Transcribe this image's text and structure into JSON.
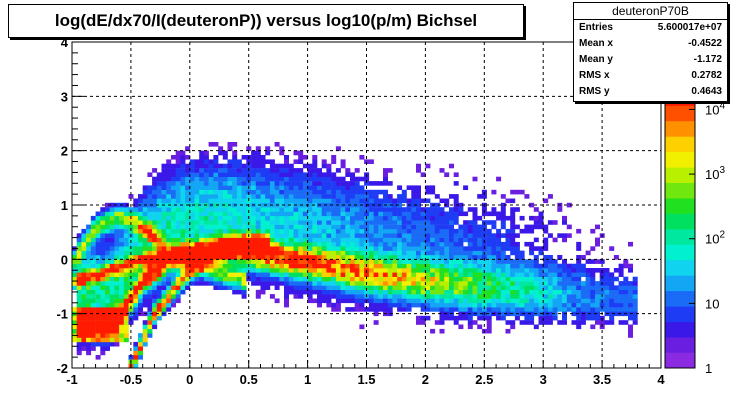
{
  "chart_data": {
    "type": "heatmap",
    "title": "log(dE/dx70/I(deuteronP)) versus log10(p/m) Bichsel",
    "xlim": [
      -1,
      4
    ],
    "ylim": [
      -2,
      4
    ],
    "x_ticks": [
      "-1",
      "-0.5",
      "0",
      "0.5",
      "1",
      "1.5",
      "2",
      "2.5",
      "3",
      "3.5",
      "4"
    ],
    "x_tick_values": [
      -1,
      -0.5,
      0,
      0.5,
      1,
      1.5,
      2,
      2.5,
      3,
      3.5,
      4
    ],
    "y_ticks": [
      "-2",
      "-1",
      "0",
      "1",
      "2",
      "3",
      "4"
    ],
    "y_tick_values": [
      -2,
      -1,
      0,
      1,
      2,
      3,
      4
    ],
    "grid": true,
    "color_scale": {
      "type": "log",
      "range": [
        1,
        20000
      ],
      "tick_labels": [
        {
          "base": "1",
          "exp": ""
        },
        {
          "base": "10",
          "exp": ""
        },
        {
          "base": "10",
          "exp": "2"
        },
        {
          "base": "10",
          "exp": "3"
        },
        {
          "base": "10",
          "exp": "4"
        }
      ],
      "tick_values": [
        1,
        10,
        100,
        1000,
        10000
      ],
      "palette": [
        "#8a2be2",
        "#6a1fe0",
        "#3a18e8",
        "#1f3cf5",
        "#1a6cf7",
        "#12a6f5",
        "#0fd3ef",
        "#00f0d0",
        "#00e8a0",
        "#00e060",
        "#20e020",
        "#70e810",
        "#b8f000",
        "#f0f000",
        "#ffd000",
        "#ff9000",
        "#ff5000",
        "#ff1a00"
      ]
    },
    "bands": [
      {
        "name": "main",
        "points": [
          [
            -0.95,
            -1.2
          ],
          [
            -0.7,
            -1.2
          ],
          [
            -0.55,
            -0.9
          ],
          [
            -0.4,
            -0.4
          ],
          [
            -0.2,
            -0.05
          ],
          [
            0,
            0.15
          ],
          [
            0.3,
            0.2
          ],
          [
            0.6,
            0.1
          ],
          [
            1.0,
            -0.05
          ],
          [
            1.5,
            -0.25
          ],
          [
            2.0,
            -0.4
          ],
          [
            2.5,
            -0.5
          ],
          [
            3.0,
            -0.6
          ],
          [
            3.5,
            -0.7
          ],
          [
            3.8,
            -0.75
          ]
        ]
      },
      {
        "name": "steep",
        "points": [
          [
            -0.5,
            -2.0
          ],
          [
            -0.4,
            -1.5
          ],
          [
            -0.3,
            -1.0
          ],
          [
            -0.15,
            -0.6
          ],
          [
            0.0,
            -0.2
          ],
          [
            0.2,
            0.1
          ],
          [
            0.4,
            0.3
          ],
          [
            0.7,
            0.3
          ]
        ]
      },
      {
        "name": "upper",
        "points": [
          [
            -1.0,
            -0.1
          ],
          [
            -0.8,
            0.6
          ],
          [
            -0.6,
            0.8
          ],
          [
            -0.4,
            0.6
          ],
          [
            -0.2,
            0.2
          ],
          [
            0.0,
            0.0
          ],
          [
            0.2,
            -0.2
          ],
          [
            0.5,
            -0.4
          ]
        ]
      },
      {
        "name": "left",
        "points": [
          [
            -1.0,
            -0.4
          ],
          [
            -0.8,
            -0.3
          ],
          [
            -0.6,
            -0.15
          ],
          [
            -0.4,
            0.0
          ],
          [
            -0.2,
            0.05
          ]
        ]
      }
    ]
  },
  "stats": {
    "name": "deuteronP70B",
    "rows": [
      {
        "label": "Entries",
        "value": "5.600017e+07"
      },
      {
        "label": "Mean x",
        "value": "-0.4522"
      },
      {
        "label": "Mean y",
        "value": "-1.172"
      },
      {
        "label": "RMS x",
        "value": "0.2782"
      },
      {
        "label": "RMS y",
        "value": "0.4643"
      }
    ]
  }
}
